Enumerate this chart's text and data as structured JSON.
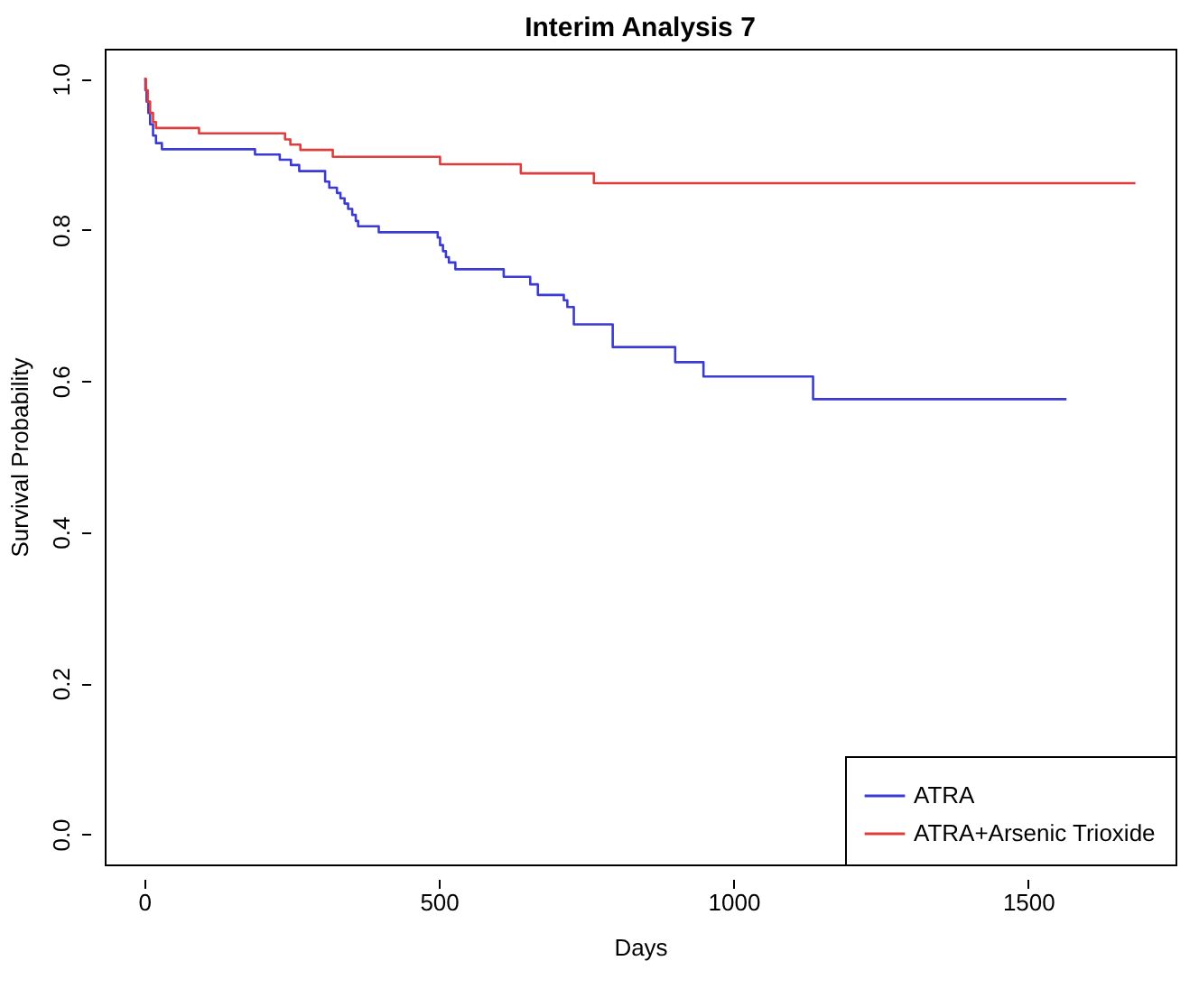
{
  "chart_data": {
    "type": "step",
    "title": "Interim Analysis 7",
    "xlabel": "Days",
    "ylabel": "Survival Probability",
    "series": [
      {
        "name": "ATRA",
        "color": "#3b3bd4",
        "x": [
          0,
          2,
          4,
          7,
          10,
          15,
          20,
          30,
          188,
          230,
          249,
          263,
          307,
          314,
          327,
          333,
          340,
          346,
          353,
          359,
          363,
          398,
          498,
          502,
          507,
          512,
          517,
          528,
          610,
          655,
          668,
          712,
          718,
          729,
          795,
          901,
          949,
          1135,
          1565
        ],
        "values": [
          1.0,
          0.985,
          0.97,
          0.955,
          0.94,
          0.925,
          0.915,
          0.907,
          0.9,
          0.893,
          0.886,
          0.878,
          0.864,
          0.856,
          0.849,
          0.842,
          0.835,
          0.828,
          0.82,
          0.812,
          0.805,
          0.797,
          0.79,
          0.78,
          0.772,
          0.764,
          0.757,
          0.748,
          0.738,
          0.728,
          0.714,
          0.707,
          0.698,
          0.675,
          0.645,
          0.625,
          0.606,
          0.576,
          0.576
        ]
      },
      {
        "name": "ATRA+Arsenic Trioxide",
        "color": "#e03c3c",
        "x": [
          0,
          3,
          6,
          10,
          15,
          20,
          93,
          239,
          248,
          265,
          320,
          502,
          639,
          763,
          1682
        ],
        "values": [
          1.0,
          0.985,
          0.97,
          0.955,
          0.943,
          0.935,
          0.928,
          0.92,
          0.913,
          0.906,
          0.897,
          0.887,
          0.875,
          0.862,
          0.862
        ]
      }
    ],
    "xlim": [
      -67,
      1750
    ],
    "ylim": [
      -0.04,
      1.04
    ],
    "xticks": [
      0,
      500,
      1000,
      1500
    ],
    "yticks": [
      {
        "value": 0,
        "label": "0.0"
      },
      {
        "value": 0.2,
        "label": "0.2"
      },
      {
        "value": 0.4,
        "label": "0.4"
      },
      {
        "value": 0.6,
        "label": "0.6"
      },
      {
        "value": 0.8,
        "label": "0.8"
      },
      {
        "value": 1,
        "label": "1.0"
      }
    ],
    "legend": "bottom right",
    "grid": false
  }
}
